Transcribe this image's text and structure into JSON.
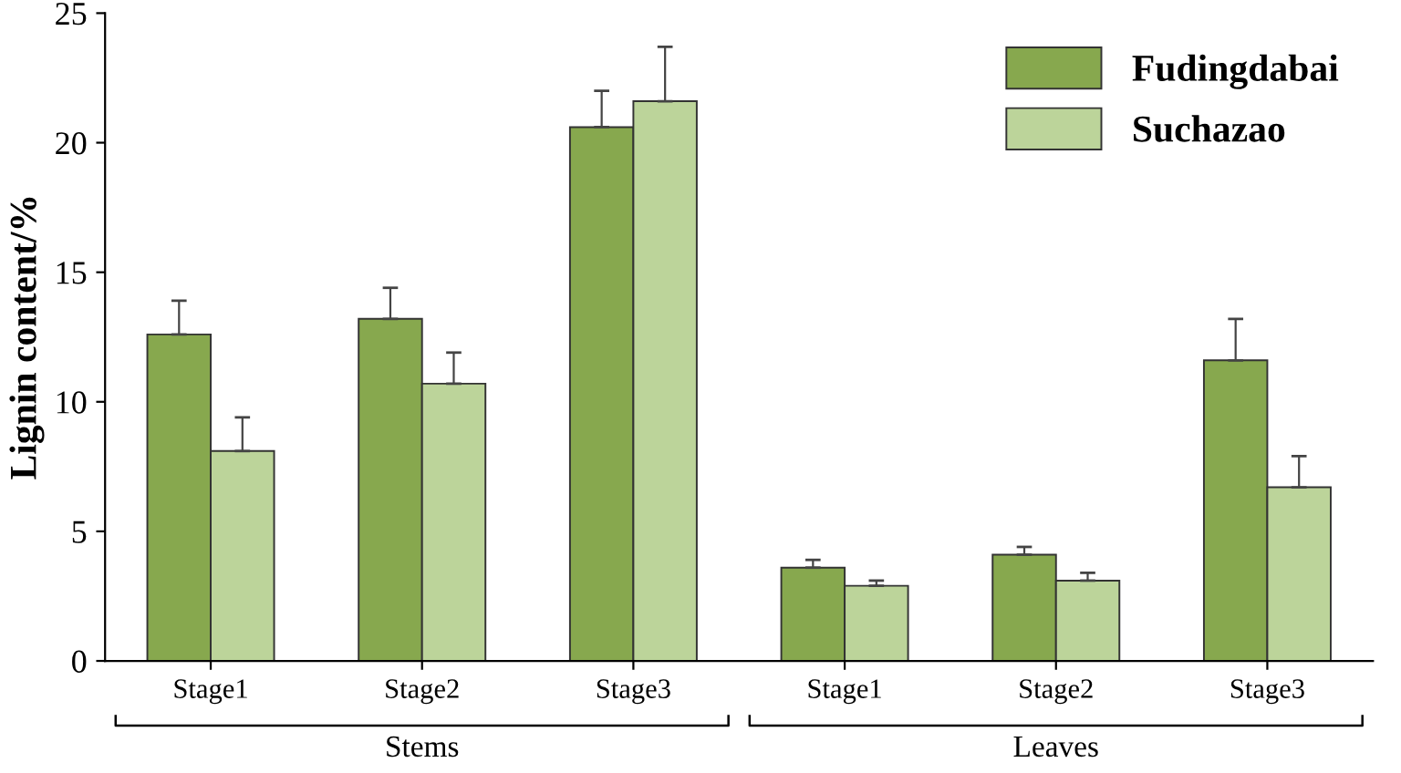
{
  "chart_data": {
    "type": "bar",
    "ylabel": "Lignin content/%",
    "categories": [
      "Stage1",
      "Stage2",
      "Stage3",
      "Stage1",
      "Stage2",
      "Stage3"
    ],
    "series": [
      {
        "name": "Fudingdabai",
        "color": "#87a84e",
        "values": [
          12.6,
          13.2,
          20.6,
          3.6,
          4.1,
          11.6
        ],
        "errors": [
          [
            12.6,
            13.9
          ],
          [
            13.2,
            14.4
          ],
          [
            20.6,
            22.0
          ],
          [
            3.6,
            3.9
          ],
          [
            4.1,
            4.4
          ],
          [
            11.6,
            13.2
          ]
        ]
      },
      {
        "name": "Suchazao",
        "color": "#bcd49a",
        "values": [
          8.1,
          10.7,
          21.6,
          2.9,
          3.1,
          6.7
        ],
        "errors": [
          [
            8.1,
            9.4
          ],
          [
            10.7,
            11.9
          ],
          [
            21.6,
            23.7
          ],
          [
            2.9,
            3.1
          ],
          [
            3.1,
            3.4
          ],
          [
            6.7,
            7.9
          ]
        ]
      }
    ],
    "ylim": [
      0,
      25
    ],
    "yticks": [
      0,
      5,
      10,
      15,
      20,
      25
    ],
    "grid": false,
    "legend": "top right",
    "annotations": [
      "Stems",
      "Leaves"
    ]
  }
}
